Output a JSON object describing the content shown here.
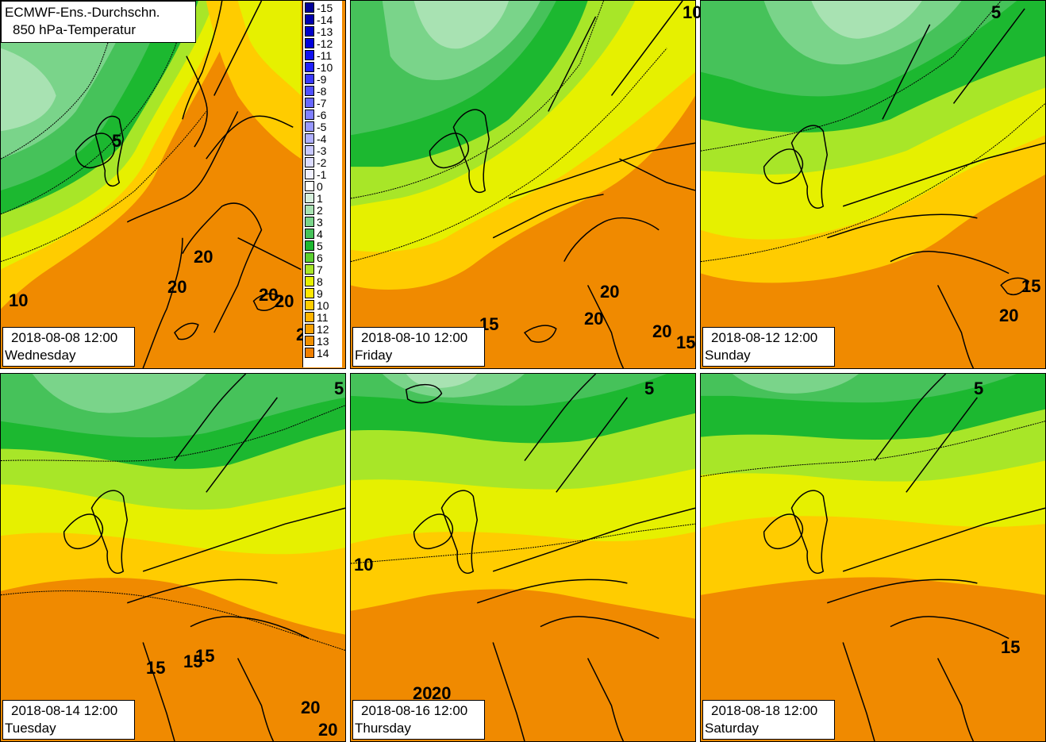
{
  "title": {
    "line1": "ECMWF-Ens.-Durchschn.",
    "line2": "850 hPa-Temperatur"
  },
  "legend": [
    {
      "label": "-15",
      "color": "#00009a"
    },
    {
      "label": "-14",
      "color": "#0000b0"
    },
    {
      "label": "-13",
      "color": "#0000c8"
    },
    {
      "label": "-12",
      "color": "#0000dc"
    },
    {
      "label": "-11",
      "color": "#1010f0"
    },
    {
      "label": "-10",
      "color": "#2020ff"
    },
    {
      "label": "-9",
      "color": "#3a3aff"
    },
    {
      "label": "-8",
      "color": "#5050ff"
    },
    {
      "label": "-7",
      "color": "#6868ff"
    },
    {
      "label": "-6",
      "color": "#8080ff"
    },
    {
      "label": "-5",
      "color": "#9898ff"
    },
    {
      "label": "-4",
      "color": "#b0b0ff"
    },
    {
      "label": "-3",
      "color": "#c8c8ff"
    },
    {
      "label": "-2",
      "color": "#dcdcff"
    },
    {
      "label": "-1",
      "color": "#f0f0ff"
    },
    {
      "label": "0",
      "color": "#ffffff"
    },
    {
      "label": "1",
      "color": "#d6f0dc"
    },
    {
      "label": "2",
      "color": "#a8e2b2"
    },
    {
      "label": "3",
      "color": "#7ad48a"
    },
    {
      "label": "4",
      "color": "#46c25a"
    },
    {
      "label": "5",
      "color": "#1cb830"
    },
    {
      "label": "6",
      "color": "#5cd030"
    },
    {
      "label": "7",
      "color": "#a8e628"
    },
    {
      "label": "8",
      "color": "#e6f000"
    },
    {
      "label": "9",
      "color": "#ffe600"
    },
    {
      "label": "10",
      "color": "#ffcc00"
    },
    {
      "label": "11",
      "color": "#ffb400"
    },
    {
      "label": "12",
      "color": "#f8a000"
    },
    {
      "label": "13",
      "color": "#f09000"
    },
    {
      "label": "14",
      "color": "#f08000"
    }
  ],
  "panels": [
    {
      "date": "2018-08-08 12:00",
      "weekday": "Wednesday",
      "labels": [
        "5",
        "20",
        "20",
        "10",
        "20",
        "20",
        "2"
      ]
    },
    {
      "date": "2018-08-10 12:00",
      "weekday": "Friday",
      "labels": [
        "10",
        "20",
        "20",
        "15",
        "20",
        "15"
      ]
    },
    {
      "date": "2018-08-12 12:00",
      "weekday": "Sunday",
      "labels": [
        "5",
        "15",
        "20"
      ]
    },
    {
      "date": "2018-08-14 12:00",
      "weekday": "Tuesday",
      "labels": [
        "5",
        "15",
        "15",
        "15",
        "20",
        "20"
      ]
    },
    {
      "date": "2018-08-16 12:00",
      "weekday": "Thursday",
      "labels": [
        "5",
        "10",
        "20",
        "20"
      ]
    },
    {
      "date": "2018-08-18 12:00",
      "weekday": "Saturday",
      "labels": [
        "5",
        "15"
      ]
    }
  ]
}
